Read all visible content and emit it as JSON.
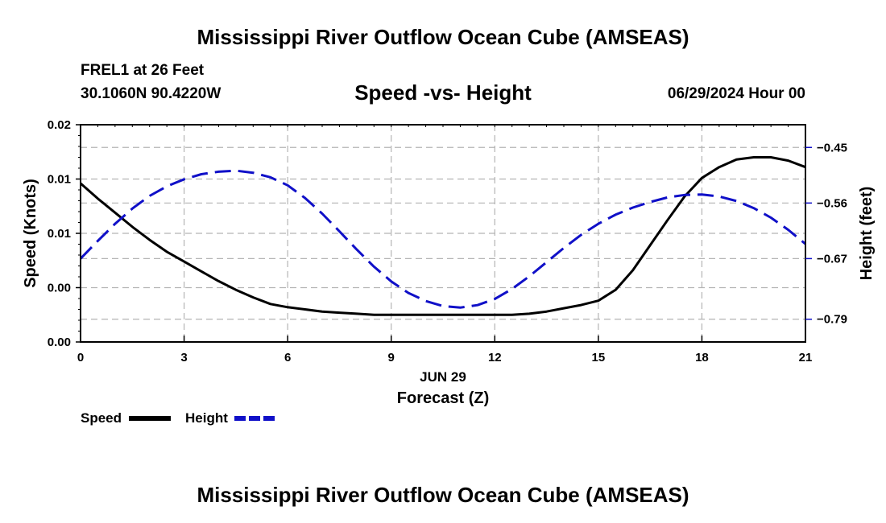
{
  "header": {
    "title": "Mississippi River Outflow Ocean Cube (AMSEAS)",
    "station": "FREL1 at 26 Feet",
    "location": "30.1060N  90.4220W",
    "subtitle": "Speed -vs- Height",
    "datetime": "06/29/2024 Hour 00"
  },
  "footer": {
    "title": "Mississippi River Outflow Ocean Cube (AMSEAS)"
  },
  "legend": {
    "speed_label": "Speed",
    "height_label": "Height"
  },
  "chart_data": {
    "type": "line",
    "title": "Speed -vs- Height",
    "xlabel": "Forecast (Z)",
    "xlabel_date": "JUN 29",
    "ylabel_left": "Speed (Knots)",
    "ylabel_right": "Height (feet)",
    "xlim": [
      0,
      21
    ],
    "ylim_left": [
      0,
      0.02
    ],
    "ylim_right": [
      -0.835,
      -0.405
    ],
    "x_ticks": [
      0,
      3,
      6,
      9,
      12,
      15,
      18,
      21
    ],
    "y_left_tick_values": [
      0,
      0.005,
      0.01,
      0.015,
      0.02
    ],
    "y_left_tick_labels": [
      "0.00",
      "0.00",
      "0.01",
      "0.01",
      "0.02"
    ],
    "y_right_tick_values": [
      -0.45,
      -0.56,
      -0.67,
      -0.79
    ],
    "y_right_tick_labels": [
      "-0.45",
      "-0.56",
      "-0.67",
      "-0.79"
    ],
    "grid": true,
    "legend_position": "bottom-left",
    "colors": {
      "speed": "#000000",
      "height": "#1010c8",
      "grid": "#b4b4b4"
    },
    "series": [
      {
        "name": "Speed",
        "axis": "left",
        "x": [
          0,
          0.5,
          1,
          1.5,
          2,
          2.5,
          3,
          3.5,
          4,
          4.5,
          5,
          5.5,
          6,
          6.5,
          7,
          7.5,
          8,
          8.5,
          9,
          9.5,
          10,
          10.5,
          11,
          11.5,
          12,
          12.5,
          13,
          13.5,
          14,
          14.5,
          15,
          15.5,
          16,
          16.5,
          17,
          17.5,
          18,
          18.5,
          19,
          19.5,
          20,
          20.5,
          21
        ],
        "values": [
          0.0146,
          0.0132,
          0.0119,
          0.0106,
          0.0094,
          0.0083,
          0.0074,
          0.0065,
          0.0056,
          0.0048,
          0.0041,
          0.0035,
          0.0032,
          0.003,
          0.0028,
          0.0027,
          0.0026,
          0.0025,
          0.0025,
          0.0025,
          0.0025,
          0.0025,
          0.0025,
          0.0025,
          0.0025,
          0.0025,
          0.0026,
          0.0028,
          0.0031,
          0.0034,
          0.0038,
          0.0048,
          0.0066,
          0.0089,
          0.0112,
          0.0134,
          0.0151,
          0.0161,
          0.0168,
          0.017,
          0.017,
          0.0167,
          0.0161
        ]
      },
      {
        "name": "Height",
        "axis": "right",
        "x": [
          0,
          0.5,
          1,
          1.5,
          2,
          2.5,
          3,
          3.5,
          4,
          4.5,
          5,
          5.5,
          6,
          6.5,
          7,
          7.5,
          8,
          8.5,
          9,
          9.5,
          10,
          10.5,
          11,
          11.5,
          12,
          12.5,
          13,
          13.5,
          14,
          14.5,
          15,
          15.5,
          16,
          16.5,
          17,
          17.5,
          18,
          18.5,
          19,
          19.5,
          20,
          20.5,
          21
        ],
        "values": [
          -0.67,
          -0.635,
          -0.601,
          -0.571,
          -0.546,
          -0.527,
          -0.513,
          -0.503,
          -0.498,
          -0.496,
          -0.5,
          -0.509,
          -0.525,
          -0.55,
          -0.581,
          -0.616,
          -0.652,
          -0.686,
          -0.715,
          -0.738,
          -0.754,
          -0.764,
          -0.767,
          -0.762,
          -0.75,
          -0.73,
          -0.705,
          -0.677,
          -0.649,
          -0.623,
          -0.601,
          -0.583,
          -0.569,
          -0.558,
          -0.549,
          -0.544,
          -0.543,
          -0.547,
          -0.556,
          -0.57,
          -0.589,
          -0.613,
          -0.641
        ]
      }
    ]
  }
}
